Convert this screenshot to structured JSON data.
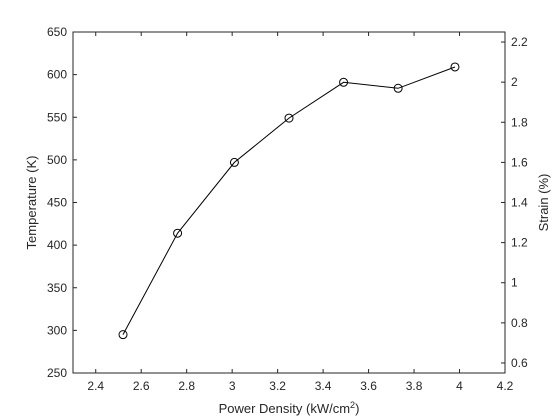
{
  "chart_data": {
    "type": "line",
    "title": "",
    "xlabel": "Power Density (kW/cm",
    "xlabel_sup": "2",
    "xlabel_suffix": ")",
    "ylabel_left": "Temperature (K)",
    "ylabel_right": "Strain (%)",
    "xlim": [
      2.3,
      4.2
    ],
    "ylim_left": [
      250,
      650
    ],
    "ylim_right": [
      0.55,
      2.25
    ],
    "x_ticks": [
      "2.4",
      "2.6",
      "2.8",
      "3",
      "3.2",
      "3.4",
      "3.6",
      "3.8",
      "4",
      "4.2"
    ],
    "y_left_ticks": [
      "250",
      "300",
      "350",
      "400",
      "450",
      "500",
      "550",
      "600",
      "650"
    ],
    "y_right_ticks": [
      "0.6",
      "0.8",
      "1",
      "1.2",
      "1.4",
      "1.6",
      "1.8",
      "2",
      "2.2"
    ],
    "grid": false,
    "series": [
      {
        "marker": "circle",
        "color": "#000000",
        "x": [
          2.52,
          2.76,
          3.01,
          3.25,
          3.49,
          3.73,
          3.98
        ],
        "y": [
          295,
          414,
          497,
          549,
          591,
          584,
          609
        ]
      }
    ]
  }
}
